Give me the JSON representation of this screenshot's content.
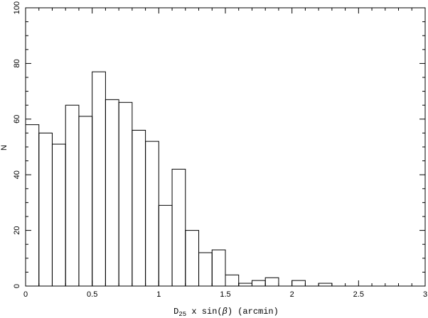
{
  "chart_data": {
    "type": "bar",
    "bin_width": 0.1,
    "bin_starts": [
      0,
      0.1,
      0.2,
      0.3,
      0.4,
      0.5,
      0.6,
      0.7,
      0.8,
      0.9,
      1.0,
      1.1,
      1.2,
      1.3,
      1.4,
      1.5,
      1.6,
      1.7,
      1.8,
      1.9,
      2.0,
      2.1,
      2.2,
      2.3,
      2.4,
      2.5,
      2.6,
      2.7,
      2.8,
      2.9
    ],
    "values": [
      58,
      55,
      51,
      65,
      61,
      77,
      67,
      66,
      56,
      52,
      29,
      42,
      20,
      12,
      13,
      4,
      1,
      2,
      3,
      0,
      2,
      0,
      1,
      0,
      0,
      0,
      0,
      0,
      0,
      0
    ],
    "xlim": [
      0,
      3
    ],
    "ylim": [
      0,
      100
    ],
    "xticks": [
      "0",
      "0.5",
      "1",
      "1.5",
      "2",
      "2.5",
      "3"
    ],
    "yticks": [
      "0",
      "20",
      "40",
      "60",
      "80",
      "100"
    ],
    "xlabel": {
      "prefix": "D",
      "subscript": "25",
      "middle": " x sin(",
      "symbol": "β",
      "suffix": ") (arcmin)"
    },
    "ylabel": "N",
    "grid": false
  }
}
